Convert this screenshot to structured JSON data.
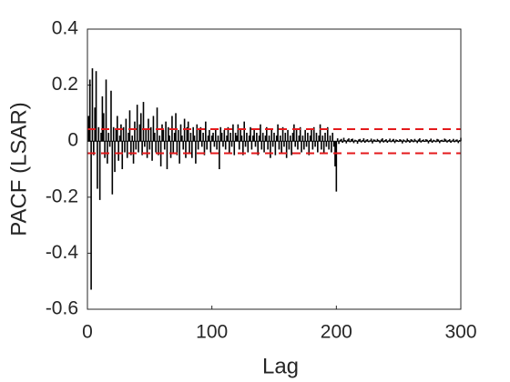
{
  "chart_data": {
    "type": "stem",
    "xlabel": "Lag",
    "ylabel": "PACF (LSAR)",
    "xlim": [
      0,
      300
    ],
    "xticks": [
      0,
      100,
      200,
      300
    ],
    "ylim": [
      -0.6,
      0.4
    ],
    "yticks": [
      -0.6,
      -0.4,
      -0.2,
      0,
      0.2,
      0.4
    ],
    "color": "#000000",
    "bounds": [
      0.043,
      -0.043
    ],
    "bounds_color": "#e41a1c",
    "x": [
      1,
      2,
      3,
      4,
      5,
      6,
      7,
      8,
      9,
      10,
      11,
      12,
      13,
      14,
      15,
      16,
      17,
      18,
      19,
      20,
      21,
      22,
      23,
      24,
      25,
      26,
      27,
      28,
      29,
      30,
      31,
      32,
      33,
      34,
      35,
      36,
      37,
      38,
      39,
      40,
      41,
      42,
      43,
      44,
      45,
      46,
      47,
      48,
      49,
      50,
      51,
      52,
      53,
      54,
      55,
      56,
      57,
      58,
      59,
      60,
      61,
      62,
      63,
      64,
      65,
      66,
      67,
      68,
      69,
      70,
      71,
      72,
      73,
      74,
      75,
      76,
      77,
      78,
      79,
      80,
      81,
      82,
      83,
      84,
      85,
      86,
      87,
      88,
      89,
      90,
      91,
      92,
      93,
      94,
      95,
      96,
      97,
      98,
      99,
      100,
      101,
      102,
      103,
      104,
      105,
      106,
      107,
      108,
      109,
      110,
      111,
      112,
      113,
      114,
      115,
      116,
      117,
      118,
      119,
      120,
      121,
      122,
      123,
      124,
      125,
      126,
      127,
      128,
      129,
      130,
      131,
      132,
      133,
      134,
      135,
      136,
      137,
      138,
      139,
      140,
      141,
      142,
      143,
      144,
      145,
      146,
      147,
      148,
      149,
      150,
      151,
      152,
      153,
      154,
      155,
      156,
      157,
      158,
      159,
      160,
      161,
      162,
      163,
      164,
      165,
      166,
      167,
      168,
      169,
      170,
      171,
      172,
      173,
      174,
      175,
      176,
      177,
      178,
      179,
      180,
      181,
      182,
      183,
      184,
      185,
      186,
      187,
      188,
      189,
      190,
      191,
      192,
      193,
      194,
      195,
      196,
      197,
      198,
      199,
      200,
      201,
      202,
      203,
      204,
      205,
      206,
      207,
      208,
      209,
      210,
      211,
      212,
      213,
      214,
      215,
      216,
      217,
      218,
      219,
      220,
      221,
      222,
      223,
      224,
      225,
      226,
      227,
      228,
      229,
      230,
      231,
      232,
      233,
      234,
      235,
      236,
      237,
      238,
      239,
      240,
      241,
      242,
      243,
      244,
      245,
      246,
      247,
      248,
      249,
      250,
      251,
      252,
      253,
      254,
      255,
      256,
      257,
      258,
      259,
      260,
      261,
      262,
      263,
      264,
      265,
      266,
      267,
      268,
      269,
      270,
      271,
      272,
      273,
      274,
      275,
      276,
      277,
      278,
      279,
      280,
      281,
      282,
      283,
      284,
      285,
      286,
      287,
      288,
      289,
      290,
      291,
      292,
      293,
      294,
      295,
      296,
      297,
      298,
      299,
      300
    ],
    "values": [
      0.09,
      0.22,
      -0.53,
      0.26,
      -0.05,
      0.12,
      0.25,
      -0.17,
      0.05,
      -0.21,
      0.03,
      0.16,
      0.1,
      -0.06,
      0.22,
      -0.08,
      0.03,
      -0.02,
      0.18,
      -0.19,
      0.05,
      -0.11,
      0.04,
      0.09,
      -0.07,
      0.02,
      0.06,
      -0.1,
      0.05,
      -0.04,
      0.08,
      -0.06,
      0.03,
      0.11,
      -0.05,
      0.02,
      -0.08,
      0.07,
      -0.03,
      0.13,
      -0.04,
      0.06,
      0.1,
      -0.05,
      0.14,
      -0.02,
      0.04,
      -0.06,
      0.08,
      -0.03,
      0.05,
      -0.07,
      0.09,
      0.03,
      -0.04,
      0.12,
      -0.05,
      0.02,
      -0.09,
      0.06,
      0.04,
      -0.03,
      0.07,
      -0.1,
      0.05,
      0.02,
      -0.06,
      0.09,
      -0.04,
      0.03,
      0.1,
      -0.05,
      0.04,
      -0.08,
      0.06,
      0.02,
      -0.03,
      0.08,
      -0.06,
      0.05,
      0.07,
      -0.04,
      0.03,
      -0.06,
      0.05,
      0.02,
      -0.08,
      0.06,
      -0.03,
      0.04,
      0.05,
      -0.02,
      0.03,
      -0.05,
      0.07,
      -0.03,
      0.02,
      0.04,
      -0.04,
      0.02,
      0.03,
      -0.02,
      0.04,
      -0.03,
      0.02,
      -0.1,
      0.05,
      0.03,
      -0.02,
      0.04,
      -0.03,
      0.02,
      0.05,
      -0.04,
      0.03,
      -0.02,
      0.06,
      -0.05,
      0.03,
      0.02,
      0.06,
      -0.03,
      0.04,
      0.02,
      -0.05,
      0.07,
      -0.02,
      0.03,
      -0.04,
      0.02,
      0.05,
      -0.03,
      0.02,
      0.04,
      -0.02,
      0.03,
      -0.05,
      0.02,
      0.06,
      -0.03,
      0.03,
      -0.04,
      0.02,
      0.05,
      -0.03,
      0.02,
      -0.06,
      0.04,
      -0.02,
      0.03,
      -0.05,
      0.02,
      0.06,
      -0.03,
      0.02,
      -0.04,
      0.05,
      -0.02,
      0.03,
      -0.06,
      0.04,
      -0.03,
      0.02,
      -0.05,
      0.03,
      0.06,
      -0.02,
      0.04,
      -0.03,
      0.02,
      0.05,
      -0.04,
      0.02,
      -0.03,
      0.04,
      -0.02,
      0.03,
      -0.05,
      0.02,
      0.04,
      -0.03,
      0.05,
      -0.02,
      0.03,
      -0.04,
      0.02,
      0.06,
      -0.03,
      0.02,
      -0.04,
      0.03,
      -0.02,
      0.05,
      -0.03,
      0.02,
      -0.04,
      0.03,
      -0.02,
      -0.09,
      -0.18,
      0.01,
      -0.01,
      0.005,
      0.008,
      -0.006,
      0.012,
      0.004,
      -0.008,
      0.006,
      0.01,
      -0.004,
      0.007,
      0.009,
      -0.007,
      0.005,
      0.003,
      -0.009,
      0.006,
      0.008,
      -0.005,
      0.004,
      0.01,
      -0.006,
      0.005,
      0.007,
      -0.004,
      0.003,
      0.009,
      -0.008,
      0.006,
      0.005,
      -0.003,
      0.008,
      0.004,
      -0.007,
      0.006,
      0.01,
      -0.005,
      0.004,
      0.007,
      -0.006,
      0.003,
      0.009,
      -0.004,
      0.005,
      0.008,
      -0.007,
      0.006,
      0.004,
      -0.003,
      0.007,
      0.005,
      -0.008,
      0.006,
      0.003,
      -0.005,
      0.009,
      0.004,
      -0.006,
      0.007,
      0.005,
      -0.004,
      0.008,
      0.003,
      -0.007,
      0.006,
      0.01,
      -0.005,
      0.004,
      0.006,
      -0.003,
      0.007,
      0.005,
      -0.008,
      0.004,
      0.009,
      -0.006,
      0.005,
      0.003,
      -0.004,
      0.008,
      0.006,
      -0.007,
      0.004,
      0.005,
      -0.003,
      0.009,
      0.006,
      -0.005,
      0.004,
      0.007,
      -0.006,
      0.003,
      0.008,
      -0.004,
      0.005,
      0.006,
      -0.007,
      0.004,
      0.012
    ]
  }
}
